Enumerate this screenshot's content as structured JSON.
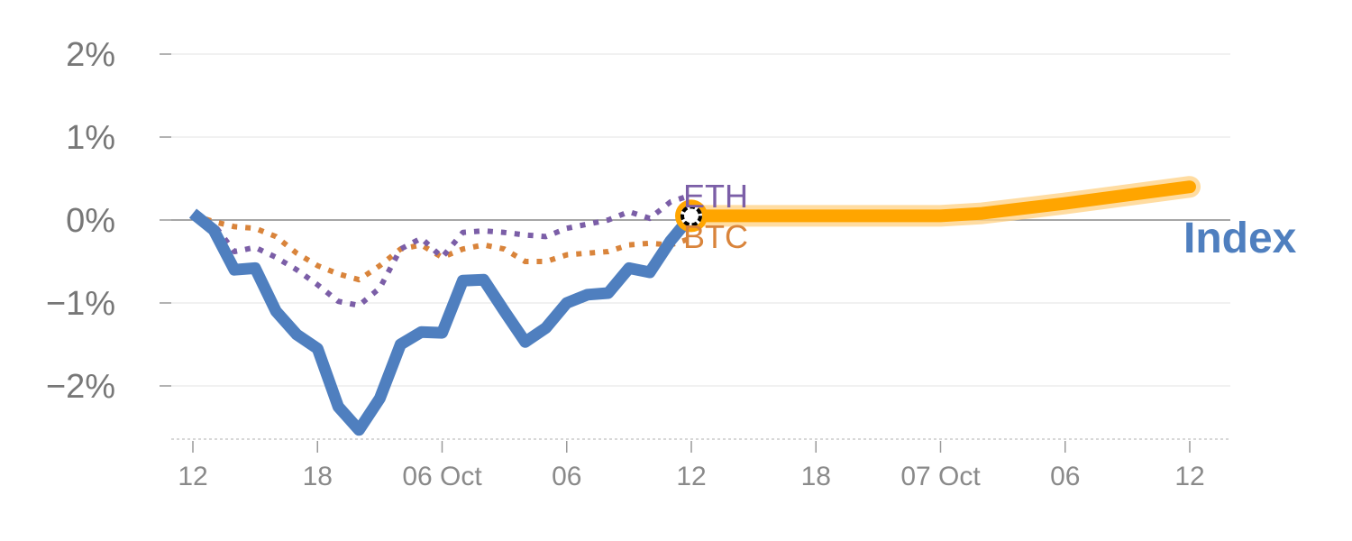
{
  "chart_data": {
    "type": "line",
    "y_unit": "%",
    "ylim": [
      -2.6,
      2.0
    ],
    "y_ticks": [
      {
        "value": 2,
        "label": "2%"
      },
      {
        "value": 1,
        "label": "1%"
      },
      {
        "value": 0,
        "label": "0%"
      },
      {
        "value": -1,
        "label": "−1%"
      },
      {
        "value": -2,
        "label": "−2%"
      }
    ],
    "x_ticks": [
      {
        "x": "2024-10-05T12:00",
        "label": "12"
      },
      {
        "x": "2024-10-05T18:00",
        "label": "18"
      },
      {
        "x": "2024-10-06T00:00",
        "label": "06 Oct"
      },
      {
        "x": "2024-10-06T06:00",
        "label": "06"
      },
      {
        "x": "2024-10-06T12:00",
        "label": "12"
      },
      {
        "x": "2024-10-06T18:00",
        "label": "18"
      },
      {
        "x": "2024-10-07T00:00",
        "label": "07 Oct"
      },
      {
        "x": "2024-10-07T06:00",
        "label": "06"
      },
      {
        "x": "2024-10-07T12:00",
        "label": "12"
      }
    ],
    "grid": true,
    "series": [
      {
        "name": "Index",
        "color": "#4f7fbf",
        "style": "solid",
        "points": [
          [
            "2024-10-05T12:00",
            0.08
          ],
          [
            "2024-10-05T13:00",
            -0.12
          ],
          [
            "2024-10-05T14:00",
            -0.6
          ],
          [
            "2024-10-05T15:00",
            -0.58
          ],
          [
            "2024-10-05T16:00",
            -1.1
          ],
          [
            "2024-10-05T17:00",
            -1.38
          ],
          [
            "2024-10-05T18:00",
            -1.55
          ],
          [
            "2024-10-05T19:00",
            -2.25
          ],
          [
            "2024-10-05T20:00",
            -2.53
          ],
          [
            "2024-10-05T21:00",
            -2.15
          ],
          [
            "2024-10-05T22:00",
            -1.5
          ],
          [
            "2024-10-05T23:00",
            -1.35
          ],
          [
            "2024-10-06T00:00",
            -1.36
          ],
          [
            "2024-10-06T01:00",
            -0.73
          ],
          [
            "2024-10-06T02:00",
            -0.72
          ],
          [
            "2024-10-06T03:00",
            -1.1
          ],
          [
            "2024-10-06T04:00",
            -1.47
          ],
          [
            "2024-10-06T05:00",
            -1.3
          ],
          [
            "2024-10-06T06:00",
            -1.0
          ],
          [
            "2024-10-06T07:00",
            -0.9
          ],
          [
            "2024-10-06T08:00",
            -0.88
          ],
          [
            "2024-10-06T09:00",
            -0.58
          ],
          [
            "2024-10-06T10:00",
            -0.63
          ],
          [
            "2024-10-06T11:00",
            -0.25
          ],
          [
            "2024-10-06T12:00",
            0.05
          ]
        ]
      },
      {
        "name": "ETH",
        "color": "#7b5ea7",
        "style": "dotted",
        "points": [
          [
            "2024-10-05T12:00",
            0.05
          ],
          [
            "2024-10-05T13:00",
            -0.05
          ],
          [
            "2024-10-05T14:00",
            -0.38
          ],
          [
            "2024-10-05T15:00",
            -0.33
          ],
          [
            "2024-10-05T16:00",
            -0.45
          ],
          [
            "2024-10-05T17:00",
            -0.6
          ],
          [
            "2024-10-05T18:00",
            -0.78
          ],
          [
            "2024-10-05T19:00",
            -0.98
          ],
          [
            "2024-10-05T20:00",
            -1.03
          ],
          [
            "2024-10-05T21:00",
            -0.82
          ],
          [
            "2024-10-05T22:00",
            -0.35
          ],
          [
            "2024-10-05T23:00",
            -0.22
          ],
          [
            "2024-10-06T00:00",
            -0.45
          ],
          [
            "2024-10-06T01:00",
            -0.15
          ],
          [
            "2024-10-06T02:00",
            -0.13
          ],
          [
            "2024-10-06T03:00",
            -0.15
          ],
          [
            "2024-10-06T04:00",
            -0.18
          ],
          [
            "2024-10-06T05:00",
            -0.2
          ],
          [
            "2024-10-06T06:00",
            -0.1
          ],
          [
            "2024-10-06T07:00",
            -0.05
          ],
          [
            "2024-10-06T08:00",
            0.0
          ],
          [
            "2024-10-06T09:00",
            0.1
          ],
          [
            "2024-10-06T10:00",
            0.02
          ],
          [
            "2024-10-06T11:00",
            0.22
          ],
          [
            "2024-10-06T12:00",
            0.3
          ]
        ]
      },
      {
        "name": "BTC",
        "color": "#d9843b",
        "style": "dotted",
        "points": [
          [
            "2024-10-05T12:00",
            0.06
          ],
          [
            "2024-10-05T13:00",
            -0.02
          ],
          [
            "2024-10-05T14:00",
            -0.08
          ],
          [
            "2024-10-05T15:00",
            -0.1
          ],
          [
            "2024-10-05T16:00",
            -0.2
          ],
          [
            "2024-10-05T17:00",
            -0.4
          ],
          [
            "2024-10-05T18:00",
            -0.55
          ],
          [
            "2024-10-05T19:00",
            -0.65
          ],
          [
            "2024-10-05T20:00",
            -0.72
          ],
          [
            "2024-10-05T21:00",
            -0.55
          ],
          [
            "2024-10-05T22:00",
            -0.35
          ],
          [
            "2024-10-05T23:00",
            -0.3
          ],
          [
            "2024-10-06T00:00",
            -0.45
          ],
          [
            "2024-10-06T01:00",
            -0.35
          ],
          [
            "2024-10-06T02:00",
            -0.3
          ],
          [
            "2024-10-06T03:00",
            -0.35
          ],
          [
            "2024-10-06T04:00",
            -0.5
          ],
          [
            "2024-10-06T05:00",
            -0.5
          ],
          [
            "2024-10-06T06:00",
            -0.42
          ],
          [
            "2024-10-06T07:00",
            -0.4
          ],
          [
            "2024-10-06T08:00",
            -0.38
          ],
          [
            "2024-10-06T09:00",
            -0.3
          ],
          [
            "2024-10-06T10:00",
            -0.28
          ],
          [
            "2024-10-06T11:00",
            -0.3
          ],
          [
            "2024-10-06T12:00",
            -0.22
          ]
        ]
      },
      {
        "name": "Index forecast",
        "color": "#ffa500",
        "style": "thick",
        "points": [
          [
            "2024-10-06T12:00",
            0.05
          ],
          [
            "2024-10-06T18:00",
            0.05
          ],
          [
            "2024-10-07T00:00",
            0.05
          ],
          [
            "2024-10-07T02:00",
            0.08
          ],
          [
            "2024-10-07T06:00",
            0.2
          ],
          [
            "2024-10-07T12:00",
            0.4
          ]
        ]
      }
    ],
    "labels": {
      "eth": "ETH",
      "btc": "BTC",
      "index": "Index"
    }
  }
}
